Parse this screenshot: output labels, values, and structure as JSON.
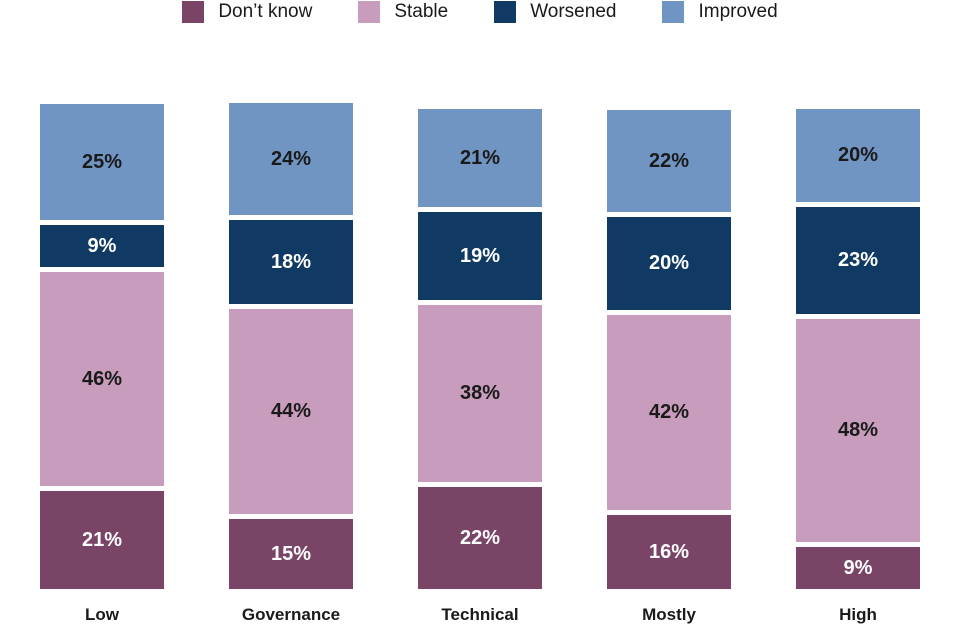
{
  "chart_data": {
    "type": "bar",
    "subtype": "stacked-column",
    "title": "",
    "xlabel": "",
    "ylabel": "",
    "ylim": [
      0,
      100
    ],
    "grid": false,
    "legend_position": "top",
    "value_suffix": "%",
    "categories": [
      "Low",
      "Governance",
      "Technical",
      "Mostly",
      "High"
    ],
    "series": [
      {
        "name": "Don’t know",
        "color": "#7a4467",
        "text_color": "#ffffff",
        "values": [
          21,
          15,
          22,
          16,
          9
        ]
      },
      {
        "name": "Stable",
        "color": "#c89cbc",
        "text_color": "#1a1a1a",
        "values": [
          46,
          44,
          38,
          42,
          48
        ]
      },
      {
        "name": "Worsened",
        "color": "#103a63",
        "text_color": "#ffffff",
        "values": [
          9,
          18,
          19,
          20,
          23
        ]
      },
      {
        "name": "Improved",
        "color": "#7095c2",
        "text_color": "#1a1a1a",
        "values": [
          25,
          24,
          21,
          22,
          20
        ]
      }
    ]
  }
}
